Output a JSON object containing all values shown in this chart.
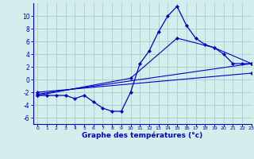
{
  "title": "Graphe des températures (°c)",
  "bg_color": "#d4eeed",
  "grid_color": "#a8d4d0",
  "line_color": "#0000cc",
  "hours": [
    0,
    1,
    2,
    3,
    4,
    5,
    6,
    7,
    8,
    9,
    10,
    11,
    12,
    13,
    14,
    15,
    16,
    17,
    18,
    19,
    20,
    21,
    22,
    23
  ],
  "temps": [
    -2.5,
    -2.5,
    -2.5,
    -2.5,
    -3.0,
    -2.5,
    -3.5,
    -4.5,
    -5.0,
    -5.0,
    -2.0,
    2.5,
    4.5,
    7.5,
    10.0,
    11.5,
    8.5,
    6.5,
    5.5,
    5.0,
    4.0,
    2.5,
    2.5,
    2.5
  ],
  "line2_x": [
    0,
    10,
    15,
    19,
    23
  ],
  "line2_y": [
    -2.5,
    0.2,
    6.5,
    5.0,
    2.5
  ],
  "line3_x": [
    0,
    23
  ],
  "line3_y": [
    -2.3,
    2.5
  ],
  "line4_x": [
    0,
    23
  ],
  "line4_y": [
    -2.0,
    1.0
  ],
  "ylim": [
    -7,
    12
  ],
  "xlim": [
    -0.5,
    23
  ],
  "yticks": [
    -6,
    -4,
    -2,
    0,
    2,
    4,
    6,
    8,
    10
  ],
  "xticks": [
    0,
    1,
    2,
    3,
    4,
    5,
    6,
    7,
    8,
    9,
    10,
    11,
    12,
    13,
    14,
    15,
    16,
    17,
    18,
    19,
    20,
    21,
    22,
    23
  ]
}
